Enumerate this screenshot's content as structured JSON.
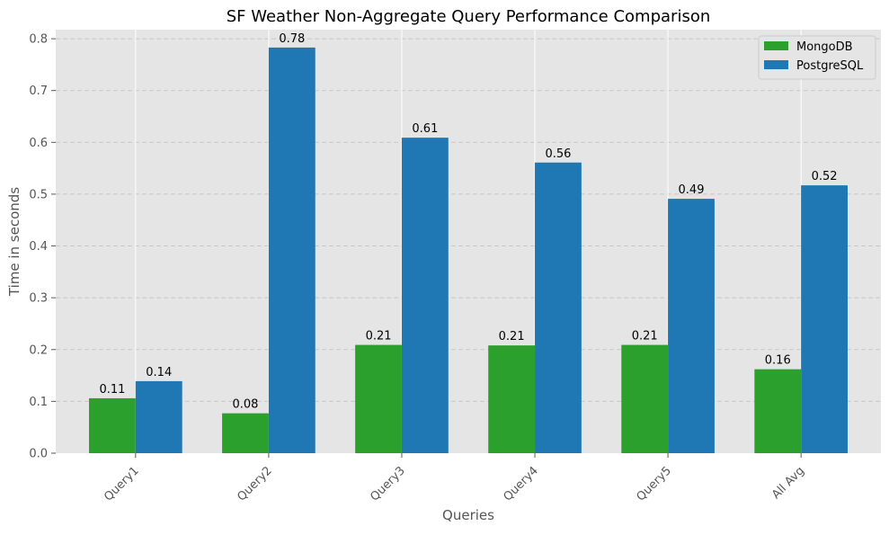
{
  "chart_data": {
    "type": "bar",
    "title": "SF Weather Non-Aggregate Query Performance Comparison",
    "xlabel": "Queries",
    "ylabel": "Time in seconds",
    "categories": [
      "Query1",
      "Query2",
      "Query3",
      "Query4",
      "Query5",
      "All Avg"
    ],
    "series": [
      {
        "name": "MongoDB",
        "color": "#2ca02c",
        "values": [
          0.106,
          0.077,
          0.209,
          0.208,
          0.209,
          0.162
        ],
        "labels": [
          "0.11",
          "0.08",
          "0.21",
          "0.21",
          "0.21",
          "0.16"
        ]
      },
      {
        "name": "PostgreSQL",
        "color": "#1f77b4",
        "values": [
          0.139,
          0.783,
          0.609,
          0.561,
          0.491,
          0.517
        ],
        "labels": [
          "0.14",
          "0.78",
          "0.61",
          "0.56",
          "0.49",
          "0.52"
        ]
      }
    ],
    "ylim": [
      0,
      0.8175
    ],
    "yticks": [
      "0.0",
      "0.1",
      "0.2",
      "0.3",
      "0.4",
      "0.5",
      "0.6",
      "0.7",
      "0.8"
    ],
    "grid": true,
    "legend_position": "top-right",
    "background_color": "#e5e5e5"
  }
}
